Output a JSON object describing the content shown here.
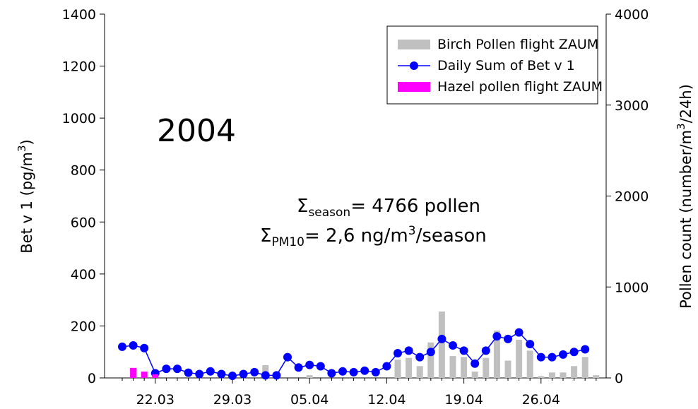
{
  "chart_data": {
    "type": "bar_line",
    "annotations": {
      "year": "2004",
      "season": {
        "symbol": "Σ",
        "sub": "season",
        "text": "= 4766 pollen"
      },
      "pm10": {
        "symbol": "Σ",
        "sub": "PM10",
        "text1": "= 2,6  ng/m",
        "sup": "3",
        "text2": "/season"
      }
    },
    "y_label": {
      "text": "Bet v 1 (pg/m",
      "sup": "3",
      "end": ")"
    },
    "y2_label": {
      "text": "Pollen count (number/m",
      "sup": "3",
      "end": "/24h)"
    },
    "categories": [
      null,
      null,
      null,
      "22.03",
      null,
      null,
      null,
      null,
      null,
      null,
      "29.03",
      null,
      null,
      null,
      null,
      null,
      null,
      "05.04",
      null,
      null,
      null,
      null,
      null,
      null,
      "12.04",
      null,
      null,
      null,
      null,
      null,
      null,
      "19.04",
      null,
      null,
      null,
      null,
      null,
      null,
      "26.04",
      null,
      null,
      null,
      null,
      null
    ],
    "ylim": [
      0,
      1400
    ],
    "yticks": [
      0,
      200,
      400,
      600,
      800,
      1000,
      1200,
      1400
    ],
    "y2lim": [
      0,
      4000
    ],
    "y2ticks": [
      0,
      1000,
      2000,
      3000,
      4000
    ],
    "series": [
      {
        "name": "Birch Pollen flight ZAUM",
        "kind": "bar",
        "axis": "y2",
        "color": "#c0c0c0",
        "values": [
          null,
          null,
          null,
          null,
          null,
          null,
          null,
          null,
          null,
          null,
          null,
          null,
          null,
          140,
          null,
          null,
          null,
          30,
          null,
          null,
          null,
          null,
          null,
          null,
          null,
          200,
          220,
          130,
          390,
          730,
          240,
          230,
          70,
          220,
          520,
          190,
          420,
          300,
          20,
          60,
          60,
          130,
          230,
          30
        ]
      },
      {
        "name": "Daily Sum of Bet v 1",
        "kind": "line",
        "axis": "y",
        "color": "#0000ff",
        "values": [
          120,
          125,
          115,
          18,
          35,
          35,
          20,
          15,
          25,
          15,
          8,
          15,
          22,
          10,
          10,
          80,
          40,
          50,
          45,
          18,
          25,
          22,
          28,
          22,
          45,
          95,
          105,
          80,
          100,
          150,
          125,
          105,
          55,
          105,
          160,
          150,
          175,
          130,
          80,
          80,
          90,
          100,
          110,
          null
        ]
      },
      {
        "name": "Hazel pollen flight ZAUM",
        "kind": "bar",
        "axis": "y2",
        "color": "#ff00ff",
        "values": [
          null,
          110,
          70,
          40,
          null,
          null,
          null,
          null,
          null,
          null,
          null,
          null,
          null,
          null,
          null,
          null,
          null,
          null,
          null,
          null,
          null,
          null,
          null,
          null,
          null,
          null,
          null,
          null,
          null,
          null,
          null,
          null,
          null,
          null,
          null,
          null,
          null,
          null,
          null,
          null,
          null,
          null,
          null,
          null
        ]
      }
    ]
  }
}
